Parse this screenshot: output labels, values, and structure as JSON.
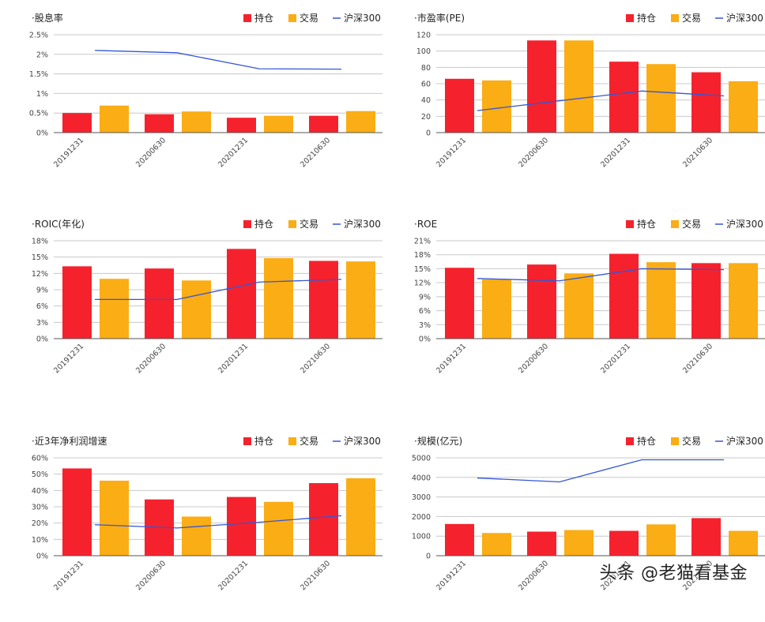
{
  "legend": {
    "hold": "持仓",
    "trade": "交易",
    "index": "沪深300"
  },
  "colors": {
    "hold": "#f5222d",
    "trade": "#faad14",
    "index": "#3456d6",
    "axis": "#9aa0a6",
    "grid": "#c8c8c8",
    "text": "#333333"
  },
  "watermark": "头条 @老猫看基金",
  "chart_data": [
    {
      "type": "bar",
      "title": "·股息率",
      "categories": [
        "20191231",
        "20200630",
        "20201231",
        "20210630"
      ],
      "yticks": [
        "0%",
        "0.5%",
        "1%",
        "1.5%",
        "2%",
        "2.5%"
      ],
      "ylim": [
        0,
        2.5
      ],
      "series": [
        {
          "name": "持仓",
          "type": "bar",
          "values": [
            0.5,
            0.47,
            0.38,
            0.43
          ]
        },
        {
          "name": "交易",
          "type": "bar",
          "values": [
            0.69,
            0.54,
            0.43,
            0.55
          ]
        },
        {
          "name": "沪深300",
          "type": "line",
          "values": [
            2.1,
            2.04,
            1.63,
            1.62
          ]
        }
      ]
    },
    {
      "type": "bar",
      "title": "·市盈率(PE)",
      "categories": [
        "20191231",
        "20200630",
        "20201231",
        "20210630"
      ],
      "yticks": [
        "0",
        "20",
        "40",
        "60",
        "80",
        "100",
        "120"
      ],
      "ylim": [
        0,
        120
      ],
      "series": [
        {
          "name": "持仓",
          "type": "bar",
          "values": [
            66,
            113,
            87,
            74
          ]
        },
        {
          "name": "交易",
          "type": "bar",
          "values": [
            64,
            113,
            84,
            63
          ]
        },
        {
          "name": "沪深300",
          "type": "line",
          "values": [
            27,
            39,
            51,
            45
          ]
        }
      ]
    },
    {
      "type": "bar",
      "title": "·ROIC(年化)",
      "categories": [
        "20191231",
        "20200630",
        "20201231",
        "20210630"
      ],
      "yticks": [
        "0%",
        "3%",
        "6%",
        "9%",
        "12%",
        "15%",
        "18%"
      ],
      "ylim": [
        0,
        18
      ],
      "series": [
        {
          "name": "持仓",
          "type": "bar",
          "values": [
            13.3,
            12.9,
            16.5,
            14.3
          ]
        },
        {
          "name": "交易",
          "type": "bar",
          "values": [
            11,
            10.7,
            14.8,
            14.2
          ]
        },
        {
          "name": "沪深300",
          "type": "line",
          "values": [
            7.2,
            7.2,
            10.4,
            10.9
          ]
        }
      ]
    },
    {
      "type": "bar",
      "title": "·ROE",
      "categories": [
        "20191231",
        "20200630",
        "20201231",
        "20210630"
      ],
      "yticks": [
        "0%",
        "3%",
        "6%",
        "9%",
        "12%",
        "15%",
        "18%",
        "21%"
      ],
      "ylim": [
        0,
        21
      ],
      "series": [
        {
          "name": "持仓",
          "type": "bar",
          "values": [
            15.2,
            15.9,
            18.2,
            16.2
          ]
        },
        {
          "name": "交易",
          "type": "bar",
          "values": [
            12.7,
            14,
            16.4,
            16.2
          ]
        },
        {
          "name": "沪深300",
          "type": "line",
          "values": [
            12.9,
            12.4,
            15,
            14.8
          ]
        }
      ]
    },
    {
      "type": "bar",
      "title": "·近3年净利润增速",
      "categories": [
        "20191231",
        "20200630",
        "20201231",
        "20210630"
      ],
      "yticks": [
        "0%",
        "10%",
        "20%",
        "30%",
        "40%",
        "50%",
        "60%"
      ],
      "ylim": [
        0,
        60
      ],
      "series": [
        {
          "name": "持仓",
          "type": "bar",
          "values": [
            53.5,
            34.5,
            36,
            44.5
          ]
        },
        {
          "name": "交易",
          "type": "bar",
          "values": [
            46,
            24,
            33,
            47.5
          ]
        },
        {
          "name": "沪深300",
          "type": "line",
          "values": [
            19,
            17,
            20.5,
            24.5
          ]
        }
      ]
    },
    {
      "type": "bar",
      "title": "·规模(亿元)",
      "categories": [
        "20191231",
        "20200630",
        "20201231",
        "20210630"
      ],
      "yticks": [
        "0",
        "1000",
        "2000",
        "3000",
        "4000",
        "5000"
      ],
      "ylim": [
        0,
        5000
      ],
      "series": [
        {
          "name": "持仓",
          "type": "bar",
          "values": [
            1620,
            1230,
            1270,
            1920
          ]
        },
        {
          "name": "交易",
          "type": "bar",
          "values": [
            1160,
            1310,
            1600,
            1270
          ]
        },
        {
          "name": "沪深300",
          "type": "line",
          "values": [
            3970,
            3770,
            4900,
            4900
          ]
        }
      ]
    }
  ]
}
